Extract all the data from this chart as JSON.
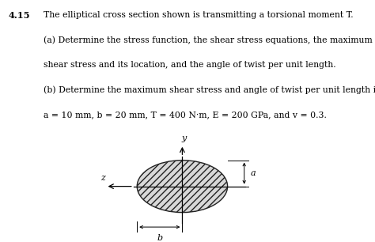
{
  "title_number": "4.15",
  "line1": "The elliptical cross section shown is transmitting a torsional moment T.",
  "line2": "(a) Determine the stress function, the shear stress equations, the maximum",
  "line3": "shear stress and its location, and the angle of twist per unit length.",
  "line4": "(b) Determine the maximum shear stress and angle of twist per unit length if",
  "line5": "a = 10 mm, b = 20 mm, T = 400 N·m, E = 200 GPa, and v = 0.3.",
  "ellipse_a": 0.75,
  "ellipse_b": 1.3,
  "hatch_pattern": "////",
  "ellipse_facecolor": "#d8d8d8",
  "ellipse_edgecolor": "#222222",
  "background_color": "#ffffff",
  "label_y": "y",
  "label_z": "z",
  "label_a": "a",
  "label_b": "b",
  "text_fontsize": 7.8,
  "bold_fontsize": 8.2,
  "diagram_fontsize": 8.0
}
